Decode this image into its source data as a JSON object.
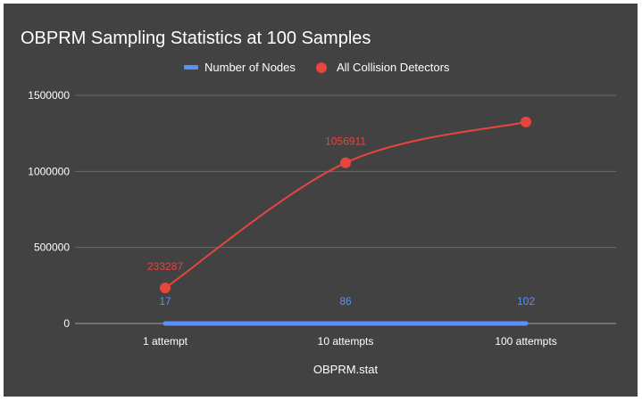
{
  "chart_data": {
    "type": "line",
    "title": "OBPRM Sampling Statistics at 100 Samples",
    "xlabel": "OBPRM.stat",
    "ylabel": "",
    "categories": [
      "1 attempt",
      "10 attempts",
      "100 attempts"
    ],
    "ylim": [
      0,
      1500000
    ],
    "yticks": [
      0,
      500000,
      1000000,
      1500000
    ],
    "ytick_labels": [
      "0",
      "500000",
      "1000000",
      "1500000"
    ],
    "grid": true,
    "legend_position": "top",
    "series": [
      {
        "name": "Number of Nodes",
        "color": "#5b8ff9",
        "marker": "line",
        "values": [
          17,
          86,
          102
        ],
        "labels": [
          "17",
          "86",
          "102"
        ]
      },
      {
        "name": "All Collision Detectors",
        "color": "#e8453c",
        "marker": "circle",
        "values": [
          233287,
          1056911,
          1325000
        ],
        "labels": [
          "233287",
          "1056911",
          ""
        ]
      }
    ],
    "colors": {
      "background": "#424242",
      "text": "#ffffff",
      "gridline": "#6b6b6b",
      "axis_text": "#ffffff"
    }
  }
}
